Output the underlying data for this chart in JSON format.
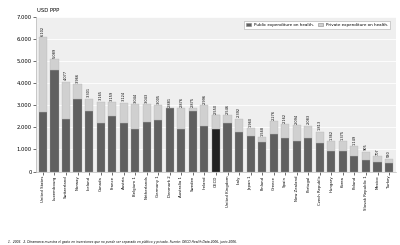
{
  "ylabel_top": "USD PPP",
  "legend_public": "Public expenditure on health.",
  "legend_private": "Private expenditure on health.",
  "footnote": "1.  2003.  2. Dinamarca muestra el gasto en inversiones que no puede ser separado en público y privado. Fuente: OECD Health Data 2006, junio 2006.",
  "ylim": [
    0,
    7000
  ],
  "ytick_labels": [
    "0",
    "1.000",
    "2.000",
    "3.000",
    "4.000",
    "5.000",
    "6.000",
    "7.000"
  ],
  "countries": [
    "United States",
    "Luxembourg",
    "Switzerland",
    "Norway",
    "Iceland",
    "Canada",
    "France",
    "Austria",
    "Belgium 1",
    "Netherlands",
    "Germany 1",
    "Denmark 2",
    "Australia 1",
    "Sweden",
    "Ireland",
    "OECD",
    "United Kingdom",
    "Italy",
    "Japan 1",
    "Finland",
    "Greece",
    "Spain",
    "New Zealand",
    "Portugal",
    "Czech Republic",
    "Hungary",
    "Korea",
    "Poland",
    "Slovak Republic 1",
    "Mexico",
    "Turkey"
  ],
  "totals": [
    6102,
    5089,
    4077,
    3966,
    3301,
    3165,
    3159,
    3124,
    3044,
    3043,
    3005,
    2881,
    2876,
    2875,
    2996,
    2550,
    2546,
    2392,
    1960,
    1568,
    2276,
    2162,
    2094,
    2083,
    1813,
    1362,
    1375,
    1149,
    905,
    707,
    580
  ],
  "public": [
    2700,
    4600,
    2400,
    3300,
    2750,
    2200,
    2500,
    2200,
    1950,
    2250,
    2350,
    2881,
    1950,
    2750,
    2050,
    1950,
    2200,
    1800,
    1600,
    1350,
    1700,
    1500,
    1400,
    1500,
    1300,
    950,
    950,
    700,
    500,
    450,
    380
  ],
  "public_color": "#606060",
  "private_color": "#d0d0d0",
  "oecd_public_color": "#222222",
  "bar_edge_color": "#aaaaaa",
  "bg_color": "#efefef"
}
